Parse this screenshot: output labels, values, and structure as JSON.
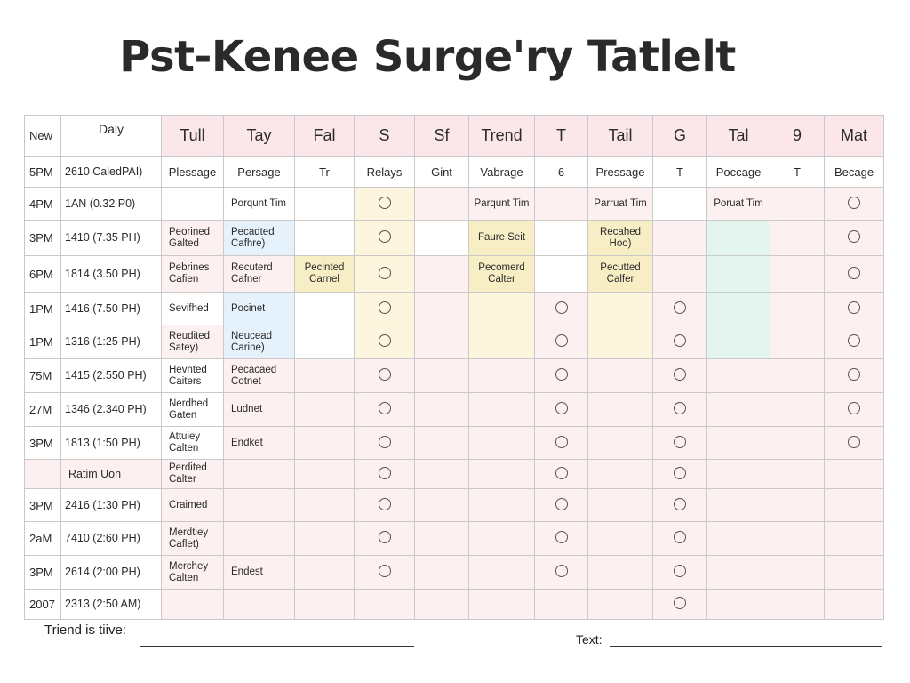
{
  "title": "Pst-Kenee Surge'ry Tatlelt",
  "header": {
    "new": "New",
    "daily": "Daly",
    "cols": [
      "Tull",
      "Tay",
      "Fal",
      "S",
      "Sf",
      "Trend",
      "T",
      "Tail",
      "G",
      "Tal",
      "9",
      "Mat"
    ]
  },
  "subheader": {
    "time": "5PM",
    "date": "2610 CaledPAI)",
    "cols": [
      "Plessage",
      "Persage",
      "Tr",
      "Relays",
      "Gint",
      "Vabrage",
      "6",
      "Pressage",
      "T",
      "Poccage",
      "T",
      "Becage"
    ]
  },
  "rows": [
    {
      "time": "4PM",
      "date": "1AN (0.32 P0)",
      "c1": "",
      "c2": "Porqunt Tim",
      "c3": "",
      "c6": "Parqunt Tim",
      "c8": "Parruat Tim",
      "c10": "Poruat Tim"
    },
    {
      "time": "3PM",
      "date": "1410 (7.35 PH)",
      "c1": "Peorined Galted",
      "c2": "Pecadted Cafhre)",
      "c3": "",
      "c6": "Faure Seit",
      "c8": "Recahed Hoo)",
      "c10": ""
    },
    {
      "time": "6PM",
      "date": "1814 (3.50 PH)",
      "c1": "Pebrines Cafien",
      "c2": "Recuterd Cafner",
      "c3": "Pecinted Carnel",
      "c6": "Pecomerd Calter",
      "c8": "Pecutted Calfer",
      "c10": ""
    },
    {
      "time": "1PM",
      "date": "1416 (7.50 PH)",
      "c1": "Sevifhed",
      "c2": "Pocinet",
      "c3": "",
      "c6": "",
      "c8": "",
      "c10": ""
    },
    {
      "time": "1PM",
      "date": "1316 (1:25 PH)",
      "c1": "Reudited Satey)",
      "c2": "Neucead Carine)",
      "c3": "",
      "c6": "",
      "c8": "",
      "c10": ""
    },
    {
      "time": "75M",
      "date": "1415 (2.550 PH)",
      "c1": "Hevnted Caiters",
      "c2": "Pecacaed Cotnet",
      "c3": "",
      "c6": "",
      "c8": "",
      "c10": ""
    },
    {
      "time": "27M",
      "date": "1346 (2.340 PH)",
      "c1": "Nerdhed Gaten",
      "c2": "Ludnet",
      "c3": "",
      "c6": "",
      "c8": "",
      "c10": ""
    },
    {
      "time": "3PM",
      "date": "1813 (1:50 PH)",
      "c1": "Attuiey Calten",
      "c2": "Endket",
      "c3": "",
      "c6": "",
      "c8": "",
      "c10": ""
    },
    {
      "time": "",
      "date": "Ratim Uon",
      "c1": "Perdited Calter",
      "c2": "",
      "c3": "",
      "c6": "",
      "c8": "",
      "c10": ""
    },
    {
      "time": "3PM",
      "date": "2416 (1:30 PH)",
      "c1": "Craimed",
      "c2": "",
      "c3": "",
      "c6": "",
      "c8": "",
      "c10": ""
    },
    {
      "time": "2aM",
      "date": "7410 (2:60 PH)",
      "c1": "Merdtiey Caflet)",
      "c2": "",
      "c3": "",
      "c6": "",
      "c8": "",
      "c10": ""
    },
    {
      "time": "3PM",
      "date": "2614 (2:00 PH)",
      "c1": "Merchey Calten",
      "c2": "Endest",
      "c3": "",
      "c6": "",
      "c8": "",
      "c10": ""
    },
    {
      "time": "2007",
      "date": "2313 (2:50 AM)",
      "c1": "",
      "c2": "",
      "c3": "",
      "c6": "",
      "c8": "",
      "c10": ""
    }
  ],
  "footer": {
    "left_label": "Triend is tiive:",
    "right_label": "Text:"
  }
}
